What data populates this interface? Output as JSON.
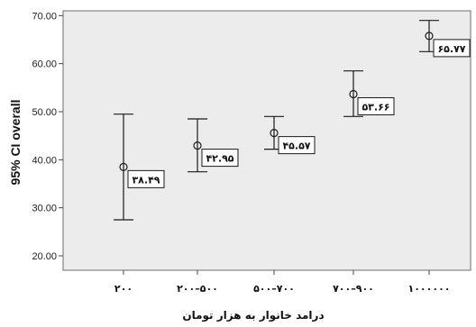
{
  "chart_data": {
    "type": "errorbar",
    "ylabel": "95% CI overall",
    "xlabel": "درامد خانوار به هزار تومان",
    "ylim": [
      17,
      71
    ],
    "yticks": [
      "20.00",
      "30.00",
      "40.00",
      "50.00",
      "60.00",
      "70.00"
    ],
    "ytick_values": [
      20,
      30,
      40,
      50,
      60,
      70
    ],
    "categories": [
      "۲۰۰",
      "۲۰۰–۵۰۰",
      "۵۰۰–۷۰۰",
      "۷۰۰–۹۰۰",
      "۱۰۰۰۰۰۰"
    ],
    "means": [
      38.49,
      42.95,
      45.57,
      53.66,
      65.77
    ],
    "lower": [
      27.5,
      37.5,
      42.2,
      49.0,
      62.5
    ],
    "upper": [
      49.5,
      48.5,
      49.0,
      58.5,
      69.0
    ],
    "data_labels": [
      "۳۸.۴۹",
      "۴۲.۹۵",
      "۴۵.۵۷",
      "۵۳.۶۶",
      "۶۵.۷۷"
    ],
    "grid": false,
    "colors": {
      "plot_bg": "#ECECEC",
      "plot_border": "#6E6E6E",
      "marks": "#1a1a1a"
    }
  }
}
